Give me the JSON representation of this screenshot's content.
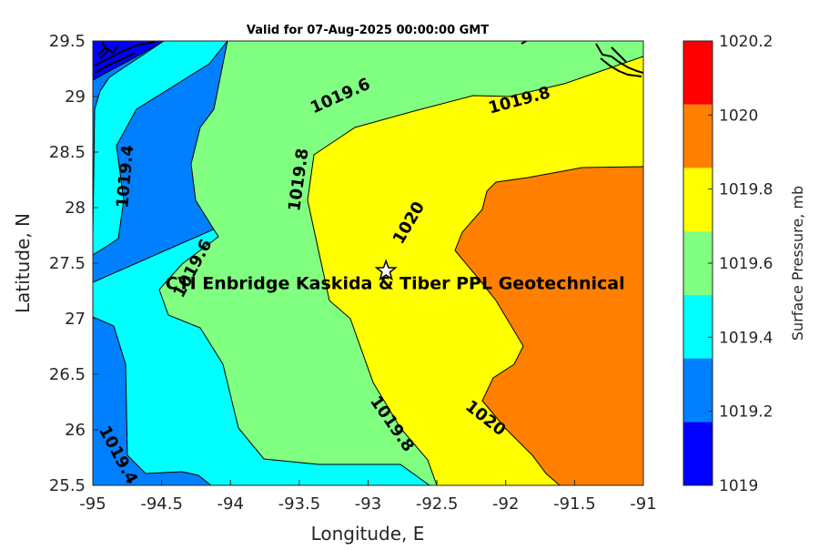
{
  "title": "Valid for 07-Aug-2025 00:00:00 GMT",
  "axes": {
    "xlabel": "Longitude, E",
    "ylabel": "Latitude, N",
    "xlim": [
      -95,
      -91
    ],
    "ylim": [
      25.5,
      29.5
    ],
    "xticks": [
      "-95",
      "-94.5",
      "-94",
      "-93.5",
      "-93",
      "-92.5",
      "-92",
      "-91.5",
      "-91"
    ],
    "yticks": [
      "25.5",
      "26",
      "26.5",
      "27",
      "27.5",
      "28",
      "28.5",
      "29",
      "29.5"
    ]
  },
  "colorbar": {
    "label": "Surface Pressure, mb",
    "ticks": [
      "1020.2",
      "1020",
      "1019.8",
      "1019.6",
      "1019.4",
      "1019.2",
      "1019"
    ],
    "levels": [
      1019.0,
      1019.2,
      1019.4,
      1019.6,
      1019.8,
      1020.0,
      1020.2
    ],
    "colors": [
      "#0000ff",
      "#0080ff",
      "#00ffff",
      "#80ff80",
      "#ffff00",
      "#ff8000",
      "#ff0000"
    ]
  },
  "contour_labels": [
    {
      "text": "1019.6",
      "lon": -93.2,
      "lat": 29.0
    },
    {
      "text": "1019.8",
      "lon": -91.9,
      "lat": 28.96
    },
    {
      "text": "1019.4",
      "lon": -94.76,
      "lat": 28.28
    },
    {
      "text": "1019.8",
      "lon": -93.5,
      "lat": 28.25
    },
    {
      "text": "1020",
      "lon": -92.7,
      "lat": 27.86
    },
    {
      "text": "1019.6",
      "lon": -94.27,
      "lat": 27.45
    },
    {
      "text": "1019.8",
      "lon": -92.83,
      "lat": 26.05
    },
    {
      "text": "1020",
      "lon": -92.15,
      "lat": 26.1
    },
    {
      "text": "1019.4",
      "lon": -94.82,
      "lat": 25.77
    }
  ],
  "site": {
    "name": "CTI Enbridge  Kaskida & Tiber PPL Geotechnical",
    "lon": -92.87,
    "lat": 27.43
  }
}
